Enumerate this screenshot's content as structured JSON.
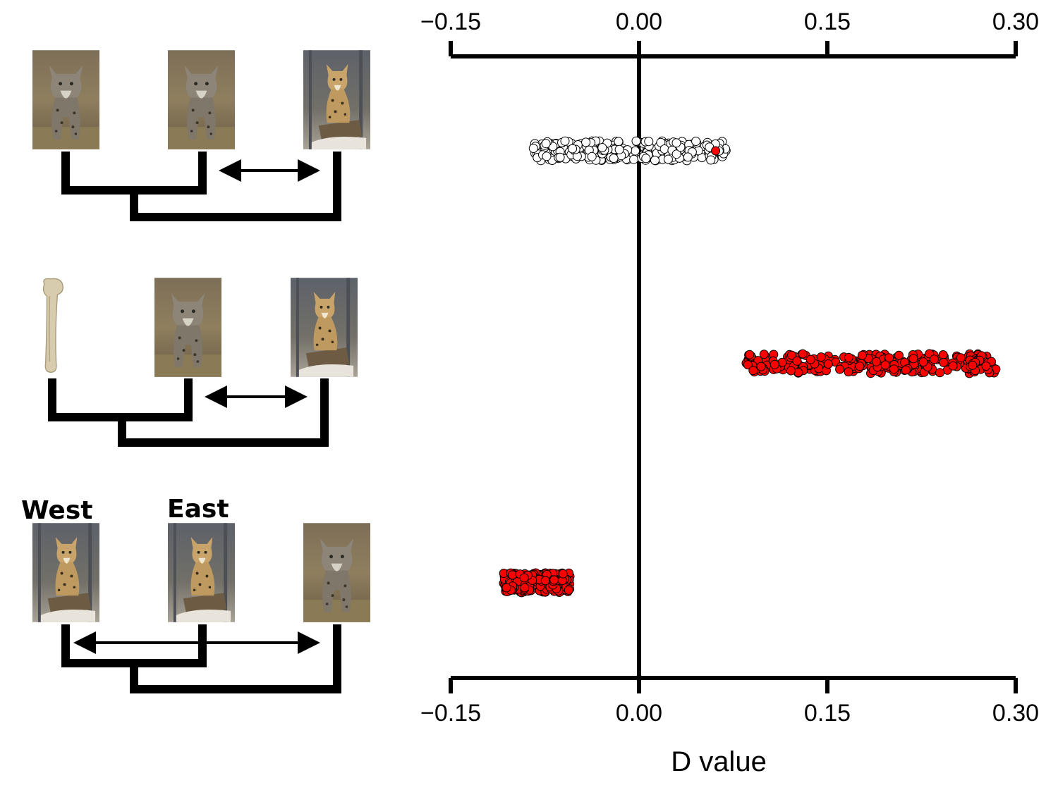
{
  "panel_labels": {
    "west": "West",
    "east": "East"
  },
  "colors": {
    "significant": "#ff0000",
    "nonsignificant": "#ffffff",
    "stroke": "#000000"
  },
  "chart_data": {
    "type": "scatter",
    "title": "",
    "xlabel": "D value",
    "ylabel": "",
    "xlim": [
      -0.15,
      0.3
    ],
    "xticks": [
      -0.15,
      0.0,
      0.15,
      0.3
    ],
    "xtick_labels": [
      "−0.15",
      "0.00",
      "0.15",
      "0.30"
    ],
    "grid": false,
    "axes": [
      "top",
      "bottom"
    ],
    "reference_line": 0,
    "series": [
      {
        "row": 1,
        "x_min": -0.085,
        "x_max": 0.07,
        "color": "#ffffff",
        "extra_points": [
          {
            "x": 0.061,
            "color": "#ff0000"
          }
        ]
      },
      {
        "row": 2,
        "x_min": 0.085,
        "x_max": 0.285,
        "color": "#ff0000"
      },
      {
        "row": 3,
        "x_min": -0.108,
        "x_max": -0.055,
        "color": "#ff0000"
      }
    ]
  },
  "icons": [
    "lynx-photo",
    "lynx-photo",
    "iberian-lynx-photo",
    "bone-fossil",
    "lynx-photo",
    "iberian-lynx-photo",
    "iberian-lynx-photo",
    "iberian-lynx-photo",
    "lynx-photo"
  ]
}
